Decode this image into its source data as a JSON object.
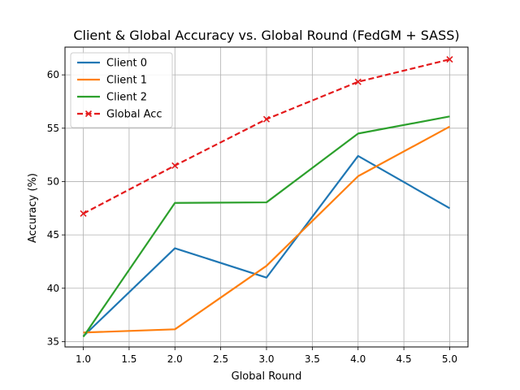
{
  "chart_data": {
    "type": "line",
    "title": "Client & Global Accuracy vs. Global Round (FedGM + SASS)",
    "xlabel": "Global Round",
    "ylabel": "Accuracy (%)",
    "xlim": [
      0.8,
      5.2
    ],
    "ylim": [
      34.5,
      62.6
    ],
    "x_ticks": [
      1.0,
      1.5,
      2.0,
      2.5,
      3.0,
      3.5,
      4.0,
      4.5,
      5.0
    ],
    "x_tick_labels": [
      "1.0",
      "1.5",
      "2.0",
      "2.5",
      "3.0",
      "3.5",
      "4.0",
      "4.5",
      "5.0"
    ],
    "y_ticks": [
      35,
      40,
      45,
      50,
      55,
      60
    ],
    "y_tick_labels": [
      "35",
      "40",
      "45",
      "50",
      "55",
      "60"
    ],
    "grid": true,
    "legend_position": "top-left",
    "x": [
      1,
      2,
      3,
      4,
      5
    ],
    "series": [
      {
        "name": "Client 0",
        "color": "#1f77b4",
        "style": "solid",
        "marker": "none",
        "values": [
          35.5,
          43.75,
          41.0,
          52.4,
          47.5
        ]
      },
      {
        "name": "Client 1",
        "color": "#ff7f0e",
        "style": "solid",
        "marker": "none",
        "values": [
          35.85,
          36.15,
          42.1,
          50.5,
          55.15
        ]
      },
      {
        "name": "Client 2",
        "color": "#2ca02c",
        "style": "solid",
        "marker": "none",
        "values": [
          35.45,
          48.0,
          48.05,
          54.5,
          56.1
        ]
      },
      {
        "name": "Global Acc",
        "color": "#e41a1c",
        "style": "dashed",
        "marker": "x",
        "values": [
          47.0,
          51.5,
          55.85,
          59.35,
          61.45
        ]
      }
    ]
  }
}
